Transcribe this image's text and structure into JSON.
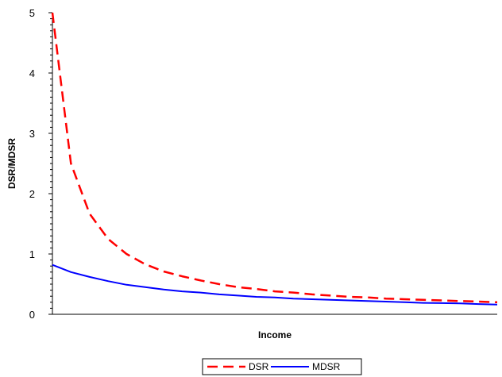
{
  "chart_data": {
    "type": "line",
    "title": "",
    "xlabel": "Income",
    "ylabel": "DSR/MDSR",
    "ylim": [
      0,
      5
    ],
    "yticks": [
      0,
      1,
      2,
      3,
      4,
      5
    ],
    "xlim": [
      1,
      25
    ],
    "x": [
      1,
      2,
      3,
      4,
      5,
      6,
      7,
      8,
      9,
      10,
      11,
      12,
      13,
      14,
      15,
      16,
      17,
      18,
      19,
      20,
      21,
      22,
      23,
      24,
      25
    ],
    "series": [
      {
        "name": "DSR",
        "color": "#ff0000",
        "dash": "dashed",
        "values": [
          5.0,
          2.5,
          1.67,
          1.25,
          1.0,
          0.83,
          0.71,
          0.63,
          0.56,
          0.5,
          0.45,
          0.42,
          0.38,
          0.36,
          0.33,
          0.31,
          0.29,
          0.28,
          0.26,
          0.25,
          0.24,
          0.23,
          0.22,
          0.21,
          0.2
        ]
      },
      {
        "name": "MDSR",
        "color": "#0000ff",
        "dash": "solid",
        "values": [
          0.82,
          0.7,
          0.62,
          0.55,
          0.49,
          0.45,
          0.41,
          0.38,
          0.36,
          0.33,
          0.31,
          0.29,
          0.28,
          0.26,
          0.25,
          0.24,
          0.23,
          0.22,
          0.21,
          0.2,
          0.19,
          0.185,
          0.18,
          0.17,
          0.16
        ]
      }
    ],
    "grid": false,
    "legend": "bottom-center"
  }
}
